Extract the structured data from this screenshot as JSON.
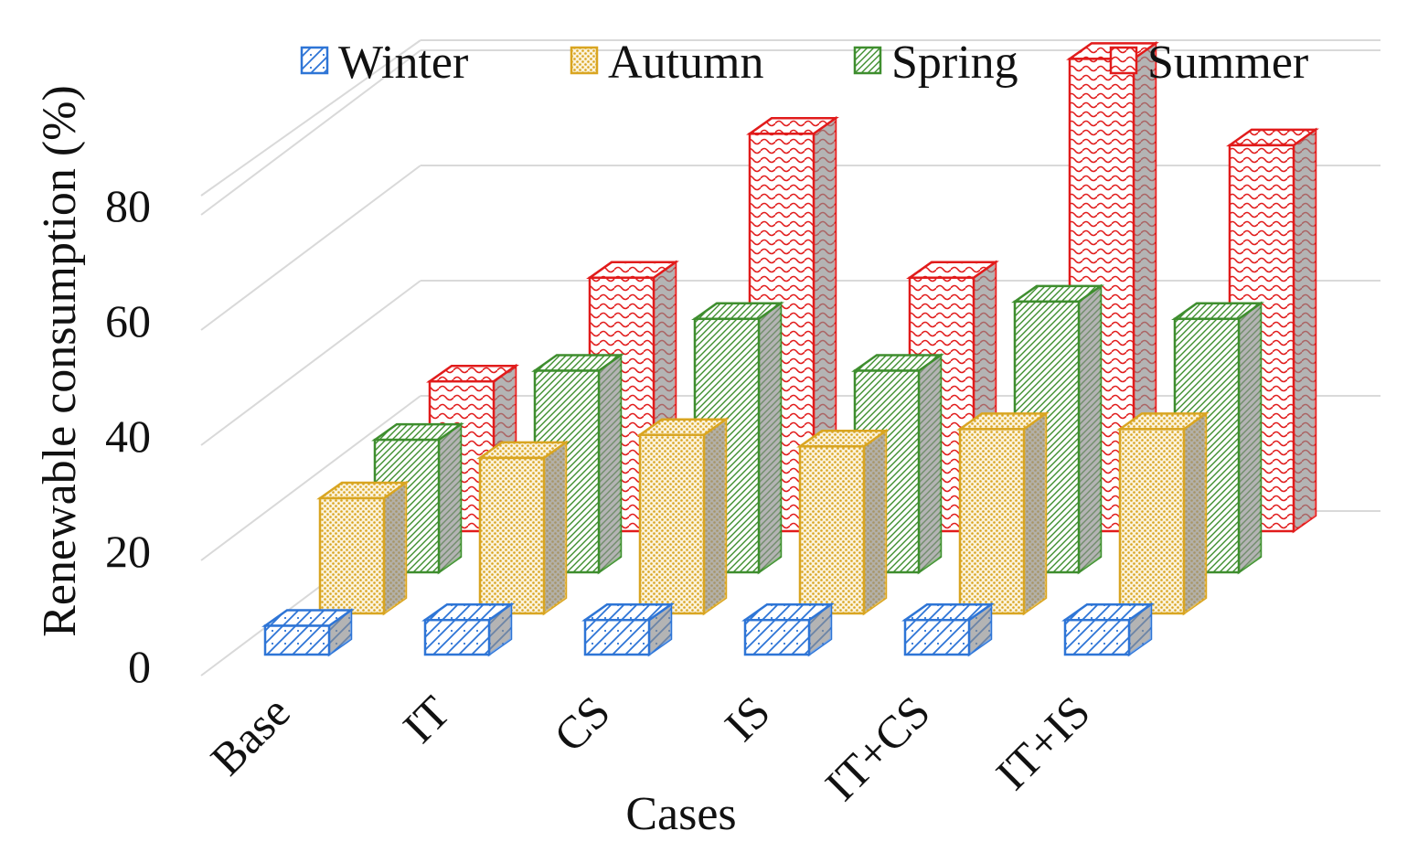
{
  "chart_data": {
    "type": "bar",
    "style": "3d-clustered-columns",
    "categories": [
      "Base",
      "IT",
      "CS",
      "IS",
      "IT+CS",
      "IT+IS"
    ],
    "series": [
      {
        "name": "Winter",
        "values": [
          5,
          6,
          6,
          6,
          6,
          6
        ],
        "color": "#2E75D6",
        "pattern": "diagonal-hatch"
      },
      {
        "name": "Autumn",
        "values": [
          20,
          27,
          31,
          29,
          32,
          32
        ],
        "color": "#D9A521",
        "pattern": "dotted"
      },
      {
        "name": "Spring",
        "values": [
          23,
          35,
          44,
          35,
          47,
          44
        ],
        "color": "#3E8E2E",
        "pattern": "dense-diagonal"
      },
      {
        "name": "Summer",
        "values": [
          26,
          44,
          69,
          44,
          82,
          67
        ],
        "color": "#E11B1B",
        "pattern": "wave"
      }
    ],
    "xlabel": "Cases",
    "ylabel": "Renewable consumption (%)",
    "yticks": [
      0,
      20,
      40,
      60,
      80
    ],
    "ylim": [
      0,
      90
    ],
    "grid": true,
    "legend_position": "top"
  }
}
